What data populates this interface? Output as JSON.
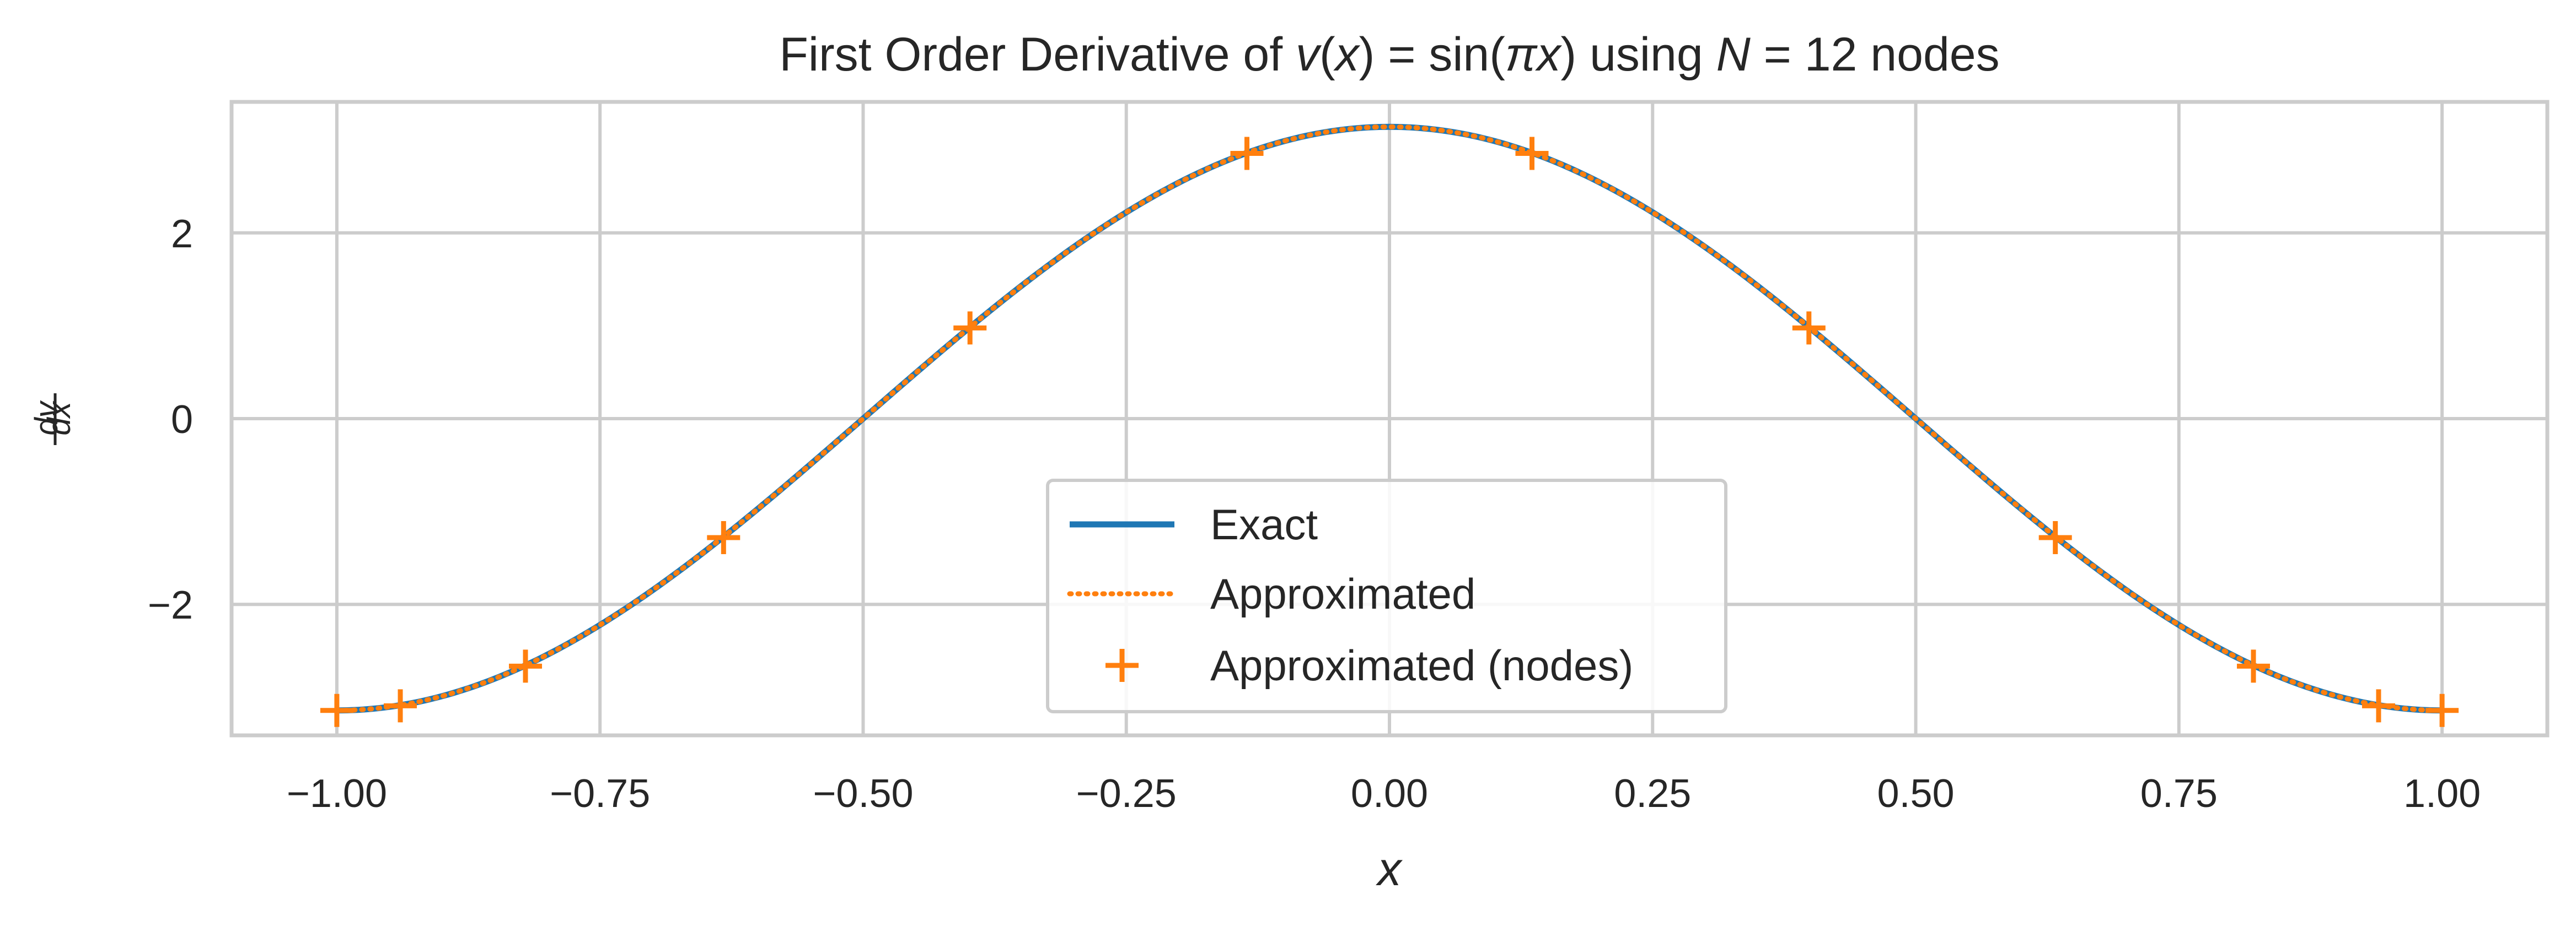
{
  "chart_data": {
    "type": "line",
    "title": {
      "prefix": "First Order Derivative of ",
      "v": "v",
      "x": "x",
      "sin": "sin",
      "pi": "π",
      "using": "using",
      "N": "N",
      "n_value": "12",
      "nodes": "nodes"
    },
    "xlabel": "x",
    "ylabel": {
      "num": "dv",
      "den": "dx"
    },
    "xlim": [
      -1.1,
      1.1
    ],
    "ylim": [
      -3.41,
      3.41
    ],
    "x_ticks": [
      -1.0,
      -0.75,
      -0.5,
      -0.25,
      0.0,
      0.25,
      0.5,
      0.75,
      1.0
    ],
    "x_tick_labels": [
      "−1.00",
      "−0.75",
      "−0.50",
      "−0.25",
      "0.00",
      "0.25",
      "0.50",
      "0.75",
      "1.00"
    ],
    "y_ticks": [
      2,
      0,
      -2
    ],
    "y_tick_labels": [
      "2",
      "0",
      "−2"
    ],
    "grid": true,
    "legend_position": "lower center",
    "series": [
      {
        "name": "Exact",
        "style": "solid",
        "color": "#1f77b4",
        "function": "pi*cos(pi*x)",
        "x_range": [
          -1.0,
          1.0
        ]
      },
      {
        "name": "Approximated",
        "style": "dotted",
        "color": "#ff7f0e",
        "function": "pi*cos(pi*x)",
        "x_range": [
          -1.0,
          1.0
        ]
      },
      {
        "name": "Approximated (nodes)",
        "style": "markers",
        "marker": "+",
        "color": "#ff7f0e",
        "x": [
          -1.0,
          -0.9397,
          -0.8208,
          -0.6326,
          -0.3985,
          -0.1354,
          0.1354,
          0.3985,
          0.6326,
          0.8208,
          0.9397,
          1.0
        ],
        "y": [
          -3.1416,
          -3.0923,
          -2.6652,
          -1.2809,
          0.9765,
          2.8558,
          2.8558,
          0.9765,
          -1.2809,
          -2.6652,
          -3.0923,
          -3.1416
        ]
      }
    ]
  }
}
